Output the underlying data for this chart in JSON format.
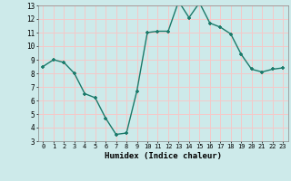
{
  "x": [
    0,
    1,
    2,
    3,
    4,
    5,
    6,
    7,
    8,
    9,
    10,
    11,
    12,
    13,
    14,
    15,
    16,
    17,
    18,
    19,
    20,
    21,
    22,
    23
  ],
  "y": [
    8.5,
    9.0,
    8.8,
    8.0,
    6.5,
    6.2,
    4.7,
    3.5,
    3.6,
    6.7,
    11.0,
    11.1,
    11.1,
    13.3,
    12.1,
    13.2,
    11.7,
    11.4,
    10.9,
    9.4,
    8.3,
    8.1,
    8.3,
    8.4
  ],
  "line_color": "#1a7a6a",
  "marker": "+",
  "marker_size": 3.5,
  "bg_color": "#cdeaea",
  "grid_color": "#f5c8c8",
  "xlabel": "Humidex (Indice chaleur)",
  "xlim": [
    -0.5,
    23.5
  ],
  "ylim": [
    3,
    13
  ],
  "yticks": [
    3,
    4,
    5,
    6,
    7,
    8,
    9,
    10,
    11,
    12,
    13
  ],
  "xticks": [
    0,
    1,
    2,
    3,
    4,
    5,
    6,
    7,
    8,
    9,
    10,
    11,
    12,
    13,
    14,
    15,
    16,
    17,
    18,
    19,
    20,
    21,
    22,
    23
  ]
}
